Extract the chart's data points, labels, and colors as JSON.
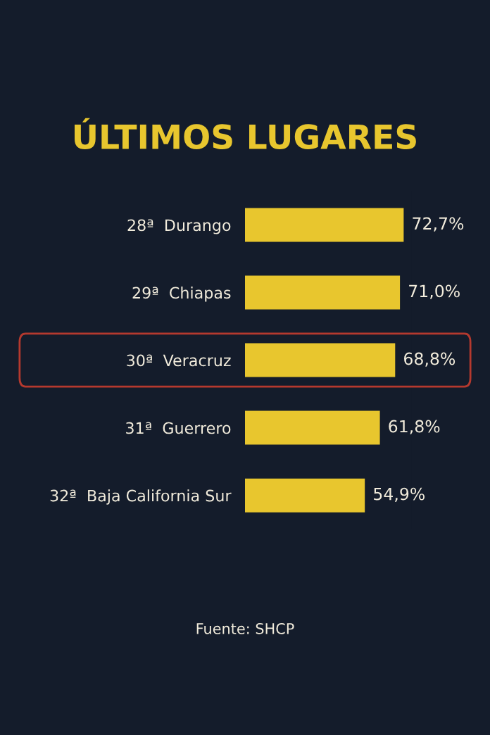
{
  "chart_data": {
    "type": "bar",
    "orientation": "horizontal",
    "title": "ÚLTIMOS LUGARES",
    "categories": [
      "28ª  Durango",
      "29ª  Chiapas",
      "30ª  Veracruz",
      "31ª  Guerrero",
      "32ª  Baja California Sur"
    ],
    "values": [
      72.7,
      71.0,
      68.8,
      61.8,
      54.9
    ],
    "value_labels": [
      "72,7%",
      "71,0%",
      "68,8%",
      "61,8%",
      "54,9%"
    ],
    "color": "#e8c62e",
    "tick_labels": "y",
    "grid": false,
    "annotations": [
      "Fuente: SHCP"
    ]
  }
}
